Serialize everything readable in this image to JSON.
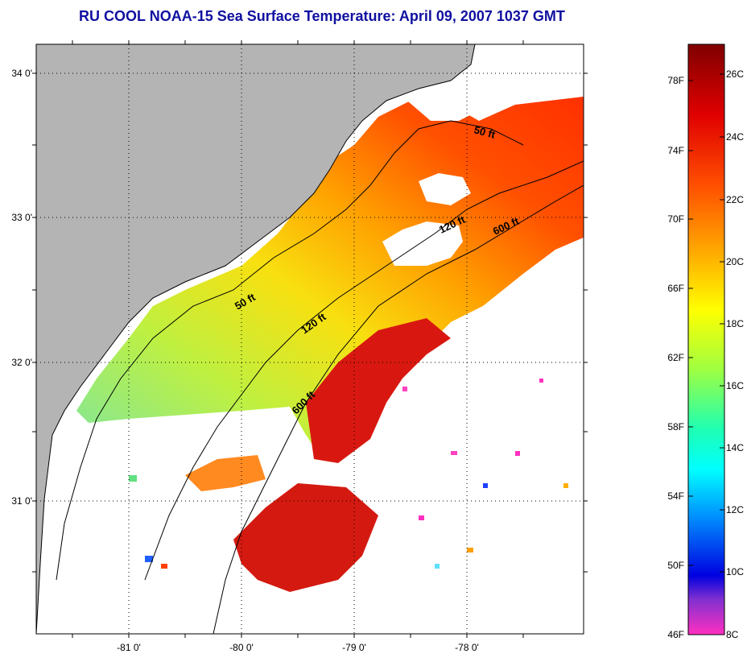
{
  "title": "RU COOL  NOAA-15  Sea Surface Temperature:  April 09, 2007 1037 GMT",
  "map": {
    "lat_labels": [
      "34 0'",
      "33 0'",
      "32 0'",
      "31 0'"
    ],
    "lon_labels": [
      "-81 0'",
      "-80 0'",
      "-79 0'",
      "-78 0'"
    ],
    "contours": [
      {
        "label": "50 ft"
      },
      {
        "label": "50 ft"
      },
      {
        "label": "120 ft"
      },
      {
        "label": "120 ft"
      },
      {
        "label": "600 ft"
      },
      {
        "label": "600 ft"
      }
    ]
  },
  "colorbar": {
    "fahrenheit_labels": [
      "78F",
      "74F",
      "70F",
      "66F",
      "62F",
      "58F",
      "54F",
      "50F",
      "46F"
    ],
    "celsius_labels": [
      "26C",
      "24C",
      "22C",
      "20C",
      "18C",
      "16C",
      "14C",
      "12C",
      "10C",
      "8C"
    ]
  },
  "colors": {
    "title": "#1010a0",
    "land": "#b4b4b4",
    "cloud": "#ffffff"
  }
}
